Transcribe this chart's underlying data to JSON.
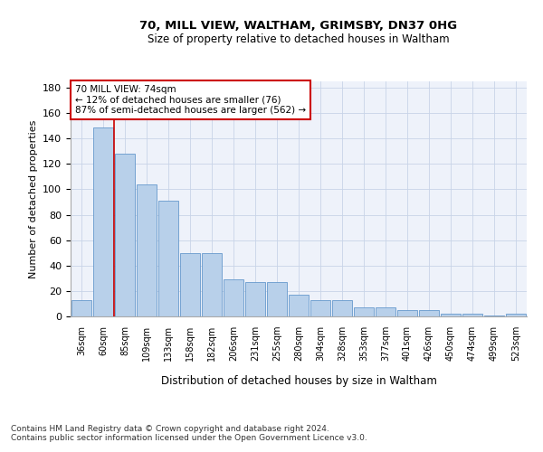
{
  "title1": "70, MILL VIEW, WALTHAM, GRIMSBY, DN37 0HG",
  "title2": "Size of property relative to detached houses in Waltham",
  "xlabel": "Distribution of detached houses by size in Waltham",
  "ylabel": "Number of detached properties",
  "categories": [
    "36sqm",
    "60sqm",
    "85sqm",
    "109sqm",
    "133sqm",
    "158sqm",
    "182sqm",
    "206sqm",
    "231sqm",
    "255sqm",
    "280sqm",
    "304sqm",
    "328sqm",
    "353sqm",
    "377sqm",
    "401sqm",
    "426sqm",
    "450sqm",
    "474sqm",
    "499sqm",
    "523sqm"
  ],
  "values": [
    13,
    149,
    128,
    104,
    91,
    50,
    50,
    29,
    27,
    27,
    17,
    13,
    13,
    7,
    7,
    5,
    5,
    2,
    2,
    1,
    2
  ],
  "bar_color": "#b8d0ea",
  "bar_edge_color": "#6699cc",
  "vline_x": 1.5,
  "vline_color": "#cc0000",
  "annotation_text": "70 MILL VIEW: 74sqm\n← 12% of detached houses are smaller (76)\n87% of semi-detached houses are larger (562) →",
  "annotation_box_color": "#ffffff",
  "annotation_box_edge": "#cc0000",
  "ylim": [
    0,
    185
  ],
  "yticks": [
    0,
    20,
    40,
    60,
    80,
    100,
    120,
    140,
    160,
    180
  ],
  "footer": "Contains HM Land Registry data © Crown copyright and database right 2024.\nContains public sector information licensed under the Open Government Licence v3.0.",
  "plot_bg": "#eef2fa"
}
